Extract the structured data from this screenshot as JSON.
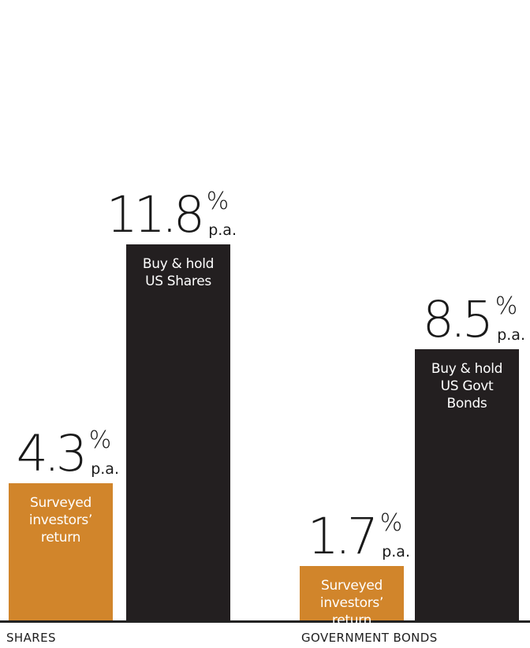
{
  "chart_data": {
    "type": "bar",
    "groups": [
      "SHARES",
      "GOVERNMENT BONDS"
    ],
    "series": [
      {
        "group": "SHARES",
        "label": "Surveyed\ninvestors’\nreturn",
        "value": 4.3,
        "display": "4.3",
        "unit": "%",
        "suffix": "p.a.",
        "color": "#d1852b"
      },
      {
        "group": "SHARES",
        "label": "Buy & hold\nUS Shares",
        "value": 11.8,
        "display": "11.8",
        "unit": "%",
        "suffix": "p.a.",
        "color": "#231f20"
      },
      {
        "group": "GOVERNMENT BONDS",
        "label": "Surveyed\ninvestors’\nreturn",
        "value": 1.7,
        "display": "1.7",
        "unit": "%",
        "suffix": "p.a.",
        "color": "#d1852b"
      },
      {
        "group": "GOVERNMENT BONDS",
        "label": "Buy & hold\nUS Govt\nBonds",
        "value": 8.5,
        "display": "8.5",
        "unit": "%",
        "suffix": "p.a.",
        "color": "#231f20"
      }
    ],
    "ylim": [
      0,
      11.8
    ],
    "grid": false,
    "legend": "none"
  },
  "colors": {
    "surveyed": "#d1852b",
    "buy_hold": "#231f20",
    "baseline": "#222222"
  }
}
